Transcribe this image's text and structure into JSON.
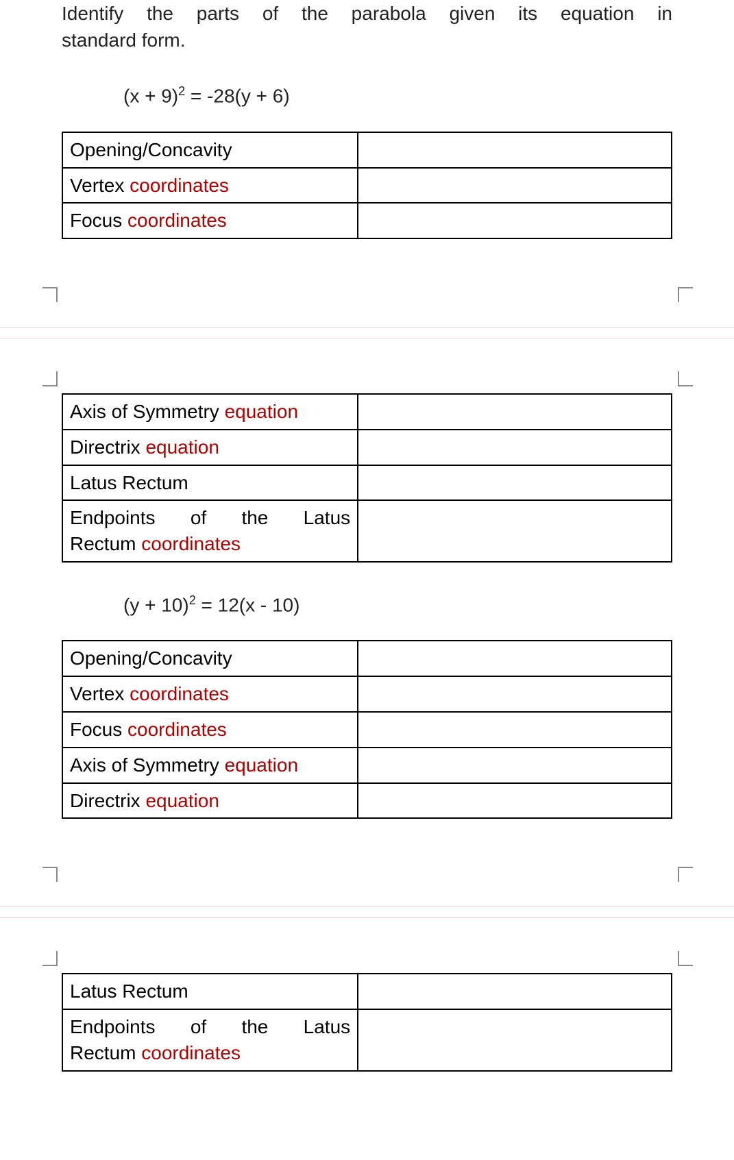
{
  "instruction_line1": "Identify the parts of the parabola given its equation in",
  "instruction_line2": "standard form.",
  "problem1": {
    "equation_html": "(x + 9)<sup>2</sup> = -28(y + 6)",
    "rows_a": [
      {
        "label_plain": "Opening/Concavity",
        "label_red": ""
      },
      {
        "label_plain": "Vertex ",
        "label_red": "coordinates"
      },
      {
        "label_plain": "Focus ",
        "label_red": "coordinates"
      }
    ],
    "rows_b": [
      {
        "label_plain": "Axis of Symmetry ",
        "label_red": "equation"
      },
      {
        "label_plain": "Directrix ",
        "label_red": "equation"
      },
      {
        "label_plain": "Latus Rectum",
        "label_red": ""
      },
      {
        "label_plain_pre": "Endpoints",
        "label_plain_mid": "of",
        "label_plain_post": "the",
        "label_plain_end": "Latus",
        "line2_plain": "Rectum ",
        "line2_red": "coordinates",
        "justified": true
      }
    ]
  },
  "problem2": {
    "equation_html": "(y + 10)<sup>2</sup> = 12(x - 10)",
    "rows_a": [
      {
        "label_plain": "Opening/Concavity",
        "label_red": ""
      },
      {
        "label_plain": "Vertex ",
        "label_red": "coordinates"
      },
      {
        "label_plain": "Focus ",
        "label_red": "coordinates"
      },
      {
        "label_plain": "Axis of Symmetry ",
        "label_red": "equation"
      },
      {
        "label_plain": "Directrix ",
        "label_red": "equation"
      }
    ],
    "rows_b": [
      {
        "label_plain": "Latus Rectum",
        "label_red": ""
      },
      {
        "label_plain_pre": "Endpoints",
        "label_plain_mid": "of",
        "label_plain_post": "the",
        "label_plain_end": "Latus",
        "line2_plain": "Rectum ",
        "line2_red": "coordinates",
        "justified": true
      }
    ]
  },
  "colors": {
    "text": "#222222",
    "red": "#b00000",
    "border": "#000000",
    "pink_line": "#f8d0d8",
    "crop": "#888888"
  }
}
